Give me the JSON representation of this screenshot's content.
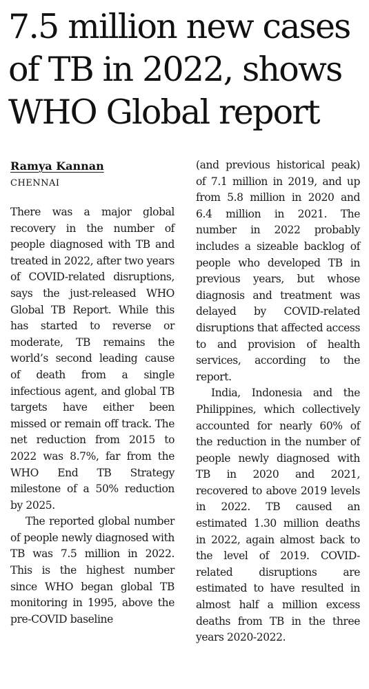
{
  "article": {
    "headline": "7.5 million new cases of TB in 2022, shows WHO Global report",
    "author": "Ramya Kannan",
    "dateline": "CHENNAI",
    "paragraphs": [
      "There was a major global recovery in the number of people diagnosed with TB and treated in 2022, after two years of COVID-related disruptions, says the just-released WHO Global TB Report. While this has started to reverse or moderate, TB remains the world’s second leading cause of death from a single infectious agent, and global TB targets have either been missed or remain off track. The net reduction from 2015 to 2022 was 8.7%, far from the WHO End TB Strategy milestone of a 50% reduction by 2025.",
      "The reported global number of people newly diagnosed with TB was 7.5 million in 2022. This is the highest number since WHO began global TB monitoring in 1995, above the pre-COVID baseline",
      "(and previous historical peak) of 7.1 million in 2019, and up from 5.8 million in 2020 and 6.4 million in 2021. The number in 2022 probably includes a sizeable backlog of people who developed TB in previous years, but whose diagnosis and treatment was delayed by COVID-related disruptions that affected access to and provision of health services, according to the report.",
      "India, Indonesia and the Philippines, which collectively accounted for nearly 60% of the reduction in the number of people newly diagnosed with TB in 2020 and 2021, recovered to above 2019 levels in 2022. TB caused an estimated 1.30 million deaths in 2022, again almost back to the level of 2019. COVID-related disruptions are estimated to have resulted in almost half a million excess deaths from TB in the three years 2020-2022."
    ]
  }
}
